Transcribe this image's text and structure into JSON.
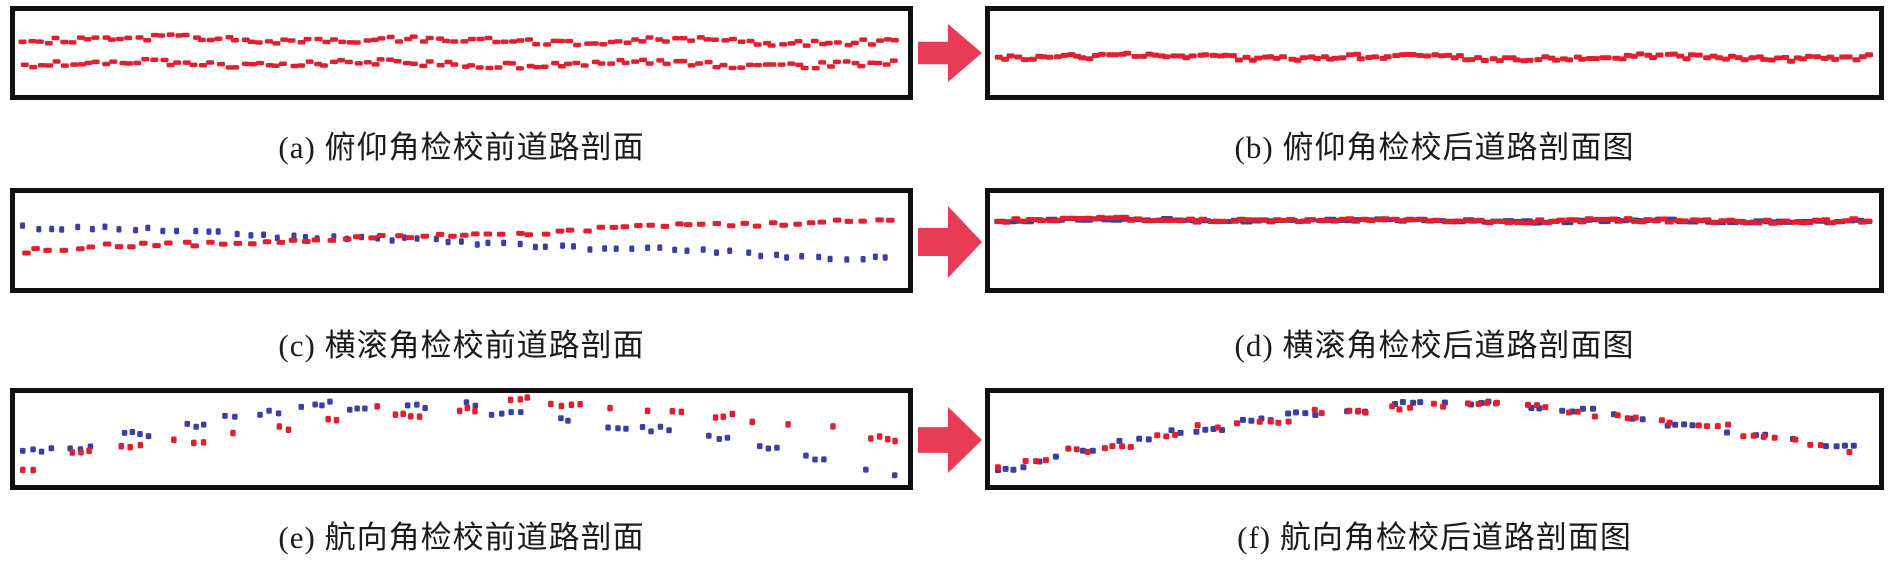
{
  "figure": {
    "background": "#ffffff",
    "panel_border_color": "#101010",
    "arrow_color": "#e73b56",
    "point_red": "#e11f2f",
    "point_blue": "#3a3fa4",
    "caption_color": "#1b1b1b",
    "panel_ids": [
      "a",
      "b",
      "c",
      "d",
      "e",
      "f"
    ]
  },
  "chart_data": [
    {
      "id": "a",
      "type": "scatter",
      "title": "(a) 俯仰角检校前道路剖面",
      "axes": "none",
      "legend": "none",
      "x_range": [
        0,
        1
      ],
      "y_range": [
        0,
        1
      ],
      "series": [
        {
          "name": "red-profile-upper-line",
          "color": "#e11f2f",
          "shape": "line",
          "y_start": 0.33,
          "y_end": 0.37,
          "noise": 0.035,
          "wave": 0.02,
          "count": 108,
          "marker_w": 8,
          "marker_h": 4.5,
          "cluster": false,
          "seed": 101
        },
        {
          "name": "red-profile-lower-line",
          "color": "#e11f2f",
          "shape": "line",
          "y_start": 0.62,
          "y_end": 0.64,
          "noise": 0.035,
          "wave": 0.02,
          "count": 108,
          "marker_w": 8,
          "marker_h": 4.5,
          "cluster": false,
          "seed": 102
        }
      ]
    },
    {
      "id": "b",
      "type": "scatter",
      "title": "(b) 俯仰角检校后道路剖面图",
      "axes": "none",
      "legend": "none",
      "x_range": [
        0,
        1
      ],
      "y_range": [
        0,
        1
      ],
      "series": [
        {
          "name": "red-profile-merged-line",
          "color": "#e11f2f",
          "shape": "line",
          "y_start": 0.54,
          "y_end": 0.56,
          "noise": 0.03,
          "wave": 0.015,
          "count": 135,
          "marker_w": 8,
          "marker_h": 5,
          "cluster": false,
          "seed": 201
        }
      ]
    },
    {
      "id": "c",
      "type": "scatter",
      "title": "(c) 横滚角检校前道路剖面",
      "axes": "none",
      "legend": "none",
      "x_range": [
        0,
        1
      ],
      "y_range": [
        0,
        1
      ],
      "series": [
        {
          "name": "blue-profile-descending",
          "color": "#3a3fa4",
          "shape": "line",
          "y_start": 0.34,
          "y_end": 0.7,
          "noise": 0.02,
          "wave": 0.012,
          "count": 62,
          "marker_w": 5,
          "marker_h": 6.5,
          "cluster": false,
          "seed": 301
        },
        {
          "name": "red-profile-ascending",
          "color": "#e11f2f",
          "shape": "line",
          "y_start": 0.6,
          "y_end": 0.27,
          "noise": 0.025,
          "wave": 0.012,
          "count": 66,
          "marker_w": 8.5,
          "marker_h": 5,
          "cluster": false,
          "seed": 302
        }
      ]
    },
    {
      "id": "d",
      "type": "scatter",
      "title": "(d) 横滚角检校后道路剖面图",
      "axes": "none",
      "legend": "none",
      "x_range": [
        0,
        1
      ],
      "y_range": [
        0,
        1
      ],
      "series": [
        {
          "name": "blue-profile-merged-line",
          "color": "#3a3fa4",
          "shape": "line",
          "y_start": 0.28,
          "y_end": 0.3,
          "noise": 0.016,
          "wave": 0.01,
          "count": 90,
          "marker_w": 12,
          "marker_h": 5,
          "cluster": false,
          "seed": 401
        },
        {
          "name": "red-profile-merged-line",
          "color": "#e11f2f",
          "shape": "line",
          "y_start": 0.28,
          "y_end": 0.3,
          "noise": 0.02,
          "wave": 0.01,
          "count": 120,
          "marker_w": 9,
          "marker_h": 5,
          "cluster": false,
          "seed": 402
        }
      ]
    },
    {
      "id": "e",
      "type": "scatter",
      "title": "(e) 航向角检校前道路剖面",
      "axes": "none",
      "legend": "none",
      "x_range": [
        0,
        1
      ],
      "y_range": [
        0,
        1
      ],
      "series": [
        {
          "name": "blue-crown-shifted-left",
          "color": "#3a3fa4",
          "shape": "arch",
          "y_left": 0.66,
          "peak_x": 0.42,
          "y_peak": 0.11,
          "y_right": 0.9,
          "noise": 0.055,
          "marker_w": 5.5,
          "marker_h": 6,
          "cluster": true,
          "gap_min": 6,
          "gap_rand": 30,
          "seed": 501
        },
        {
          "name": "red-crown-shifted-right",
          "color": "#e11f2f",
          "shape": "arch",
          "y_left": 0.8,
          "peak_x": 0.58,
          "y_peak": 0.09,
          "y_right": 0.52,
          "noise": 0.055,
          "marker_w": 5.5,
          "marker_h": 6.5,
          "cluster": true,
          "gap_min": 6,
          "gap_rand": 30,
          "seed": 502
        }
      ]
    },
    {
      "id": "f",
      "type": "scatter",
      "title": "(f) 航向角检校后道路剖面图",
      "axes": "none",
      "legend": "none",
      "x_range": [
        0,
        1
      ],
      "y_range": [
        0,
        1
      ],
      "series": [
        {
          "name": "blue-crown-aligned",
          "color": "#3a3fa4",
          "shape": "arch",
          "y_left": 0.82,
          "peak_x": 0.5,
          "y_peak": 0.1,
          "y_right": 0.72,
          "noise": 0.035,
          "marker_w": 6,
          "marker_h": 6,
          "cluster": true,
          "gap_min": 4,
          "gap_rand": 22,
          "seed": 601
        },
        {
          "name": "red-crown-aligned",
          "color": "#e11f2f",
          "shape": "arch",
          "y_left": 0.8,
          "peak_x": 0.52,
          "y_peak": 0.1,
          "y_right": 0.7,
          "noise": 0.04,
          "marker_w": 6,
          "marker_h": 6,
          "cluster": true,
          "gap_min": 4,
          "gap_rand": 22,
          "seed": 602
        }
      ]
    }
  ]
}
